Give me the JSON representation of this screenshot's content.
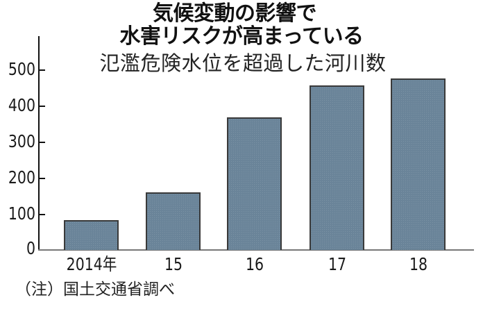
{
  "header": {
    "title_line1": "気候変動の影響で",
    "title_line2": "水害リスクが高まっている",
    "subtitle": "氾濫危険水位を超過した河川数"
  },
  "footnote": "（注）国土交通省調べ",
  "colors": {
    "bar_fill": "#6a8499",
    "bar_border": "#3a3a3a",
    "axis": "#111111",
    "background": "#ffffff"
  },
  "axis": {
    "y_ticks": [
      "500",
      "400",
      "300",
      "200",
      "100",
      "0"
    ],
    "x_labels": [
      "2014年",
      "15",
      "16",
      "17",
      "18"
    ]
  },
  "chart_data": {
    "type": "bar",
    "title": "気候変動の影響で水害リスクが高まっている",
    "subtitle": "氾濫危険水位を超過した河川数",
    "categories": [
      "2014年",
      "15",
      "16",
      "17",
      "18"
    ],
    "values": [
      83,
      160,
      367,
      456,
      475
    ],
    "xlabel": "",
    "ylabel": "",
    "ylim": [
      0,
      590
    ],
    "yticks": [
      0,
      100,
      200,
      300,
      400,
      500
    ],
    "grid": false,
    "legend": null,
    "annotations": [
      "（注）国土交通省調べ"
    ]
  }
}
